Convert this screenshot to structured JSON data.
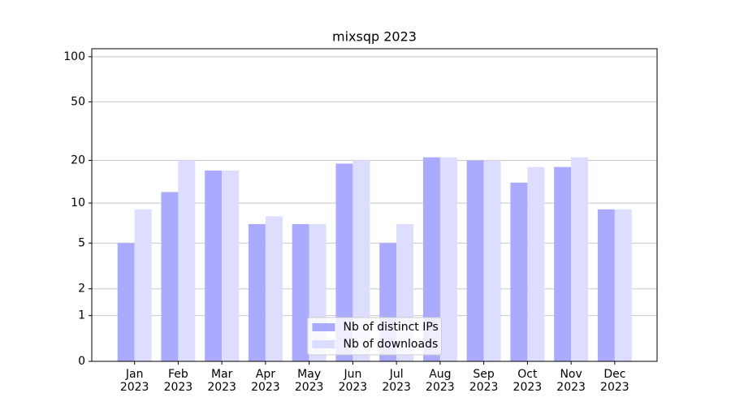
{
  "chart_data": {
    "type": "bar",
    "title": "mixsqp 2023",
    "categories": [
      "Jan\n2023",
      "Feb\n2023",
      "Mar\n2023",
      "Apr\n2023",
      "May\n2023",
      "Jun\n2023",
      "Jul\n2023",
      "Aug\n2023",
      "Sep\n2023",
      "Oct\n2023",
      "Nov\n2023",
      "Dec\n2023"
    ],
    "series": [
      {
        "name": "Nb of distinct IPs",
        "color": "#aaaaff",
        "values": [
          5,
          12,
          17,
          7,
          7,
          19,
          5,
          21,
          20,
          14,
          18,
          9
        ]
      },
      {
        "name": "Nb of downloads",
        "color": "#ddddff",
        "values": [
          9,
          20,
          17,
          8,
          7,
          20,
          7,
          21,
          20,
          18,
          21,
          9
        ]
      }
    ],
    "yscale": "log1p",
    "ylim": [
      0,
      113
    ],
    "yticks": [
      0,
      1,
      2,
      5,
      10,
      20,
      50,
      100
    ],
    "grid": true,
    "legend": "lower center"
  }
}
